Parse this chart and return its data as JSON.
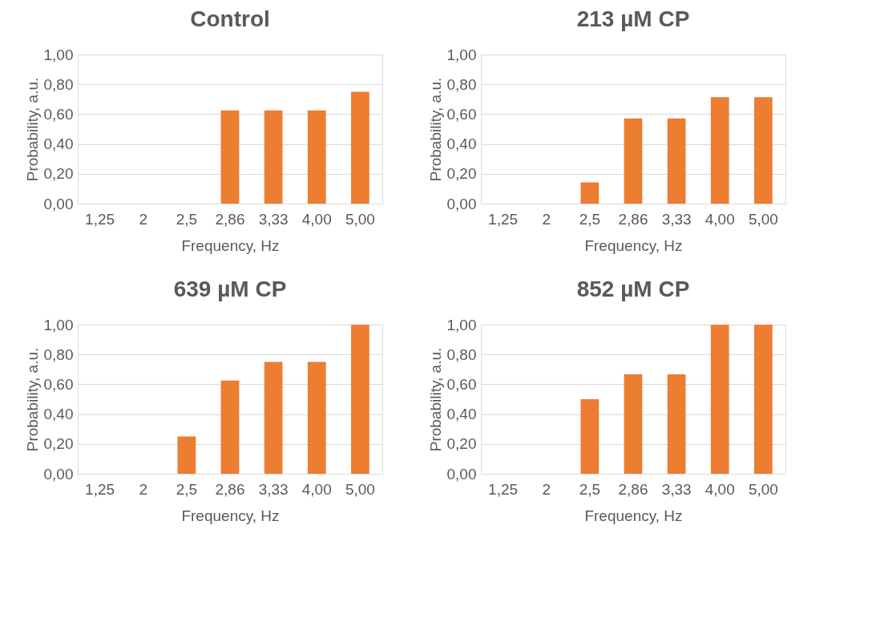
{
  "chart_data": [
    {
      "type": "bar",
      "title": "Control",
      "xlabel": "Frequency, Hz",
      "ylabel": "Probability, a.u.",
      "categories": [
        "1,25",
        "2",
        "2,5",
        "2,86",
        "3,33",
        "4,00",
        "5,00"
      ],
      "values": [
        0,
        0,
        0,
        0.625,
        0.625,
        0.625,
        0.75
      ],
      "color": "#ed7d31",
      "ylim": [
        0,
        1
      ],
      "yticks": [
        {
          "value": 0,
          "label": "0,00"
        },
        {
          "value": 0.2,
          "label": "0,20"
        },
        {
          "value": 0.4,
          "label": "0,40"
        },
        {
          "value": 0.6,
          "label": "0,60"
        },
        {
          "value": 0.8,
          "label": "0,80"
        },
        {
          "value": 1,
          "label": "1,00"
        }
      ],
      "grid": "y"
    },
    {
      "type": "bar",
      "title": "213 µM CP",
      "xlabel": "Frequency, Hz",
      "ylabel": "Probability, a.u.",
      "categories": [
        "1,25",
        "2",
        "2,5",
        "2,86",
        "3,33",
        "4,00",
        "5,00"
      ],
      "values": [
        0,
        0,
        0.143,
        0.571,
        0.571,
        0.714,
        0.714
      ],
      "color": "#ed7d31",
      "ylim": [
        0,
        1
      ],
      "yticks": [
        {
          "value": 0,
          "label": "0,00"
        },
        {
          "value": 0.2,
          "label": "0,20"
        },
        {
          "value": 0.4,
          "label": "0,40"
        },
        {
          "value": 0.6,
          "label": "0,60"
        },
        {
          "value": 0.8,
          "label": "0,80"
        },
        {
          "value": 1,
          "label": "1,00"
        }
      ],
      "grid": "y"
    },
    {
      "type": "bar",
      "title": "639 µM CP",
      "xlabel": "Frequency, Hz",
      "ylabel": "Probability, a.u.",
      "categories": [
        "1,25",
        "2",
        "2,5",
        "2,86",
        "3,33",
        "4,00",
        "5,00"
      ],
      "values": [
        0,
        0,
        0.25,
        0.625,
        0.75,
        0.75,
        1.0
      ],
      "color": "#ed7d31",
      "ylim": [
        0,
        1
      ],
      "yticks": [
        {
          "value": 0,
          "label": "0,00"
        },
        {
          "value": 0.2,
          "label": "0,20"
        },
        {
          "value": 0.4,
          "label": "0,40"
        },
        {
          "value": 0.6,
          "label": "0,60"
        },
        {
          "value": 0.8,
          "label": "0,80"
        },
        {
          "value": 1,
          "label": "1,00"
        }
      ],
      "grid": "y"
    },
    {
      "type": "bar",
      "title": "852 µM CP",
      "xlabel": "Frequency, Hz",
      "ylabel": "Probability, a.u.",
      "categories": [
        "1,25",
        "2",
        "2,5",
        "2,86",
        "3,33",
        "4,00",
        "5,00"
      ],
      "values": [
        0,
        0,
        0.5,
        0.667,
        0.667,
        1.0,
        1.0
      ],
      "color": "#ed7d31",
      "ylim": [
        0,
        1
      ],
      "yticks": [
        {
          "value": 0,
          "label": "0,00"
        },
        {
          "value": 0.2,
          "label": "0,20"
        },
        {
          "value": 0.4,
          "label": "0,40"
        },
        {
          "value": 0.6,
          "label": "0,60"
        },
        {
          "value": 0.8,
          "label": "0,80"
        },
        {
          "value": 1,
          "label": "1,00"
        }
      ],
      "grid": "y"
    }
  ]
}
